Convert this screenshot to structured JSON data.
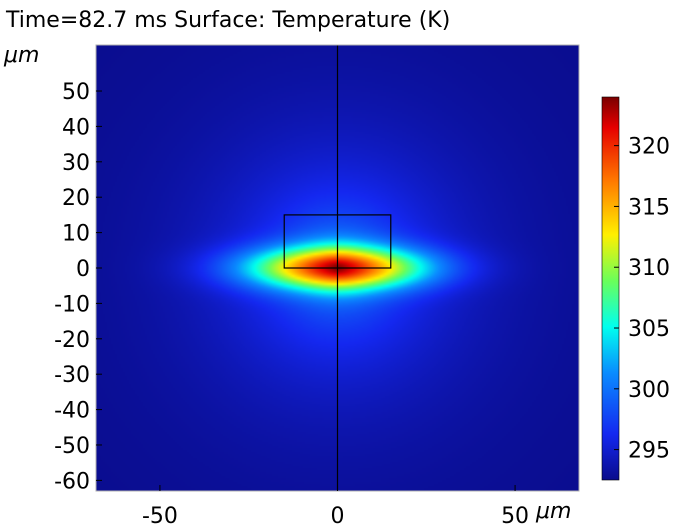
{
  "chart_data": {
    "type": "heatmap",
    "title": "Time=82.7 ms  Surface: Temperature (K)",
    "xunit": "μm",
    "yunit": "μm",
    "xlim": [
      -68,
      68
    ],
    "ylim": [
      -63,
      63
    ],
    "xticks": [
      -50,
      0,
      50
    ],
    "yticks": [
      50,
      40,
      30,
      20,
      10,
      0,
      -10,
      -20,
      -30,
      -40,
      -50,
      -60
    ],
    "field": {
      "quantity": "Temperature (K)",
      "max": 324,
      "min": 292.5,
      "hotspot_center": [
        0,
        0
      ],
      "hotspot_shape": "ellipse, wider in x than y",
      "hotspot_semi_axes": [
        15,
        3.5
      ]
    },
    "overlays": {
      "rectangle": {
        "x": [
          -15,
          15
        ],
        "y": [
          0,
          15
        ]
      },
      "vertical_line_x": 0
    },
    "colorbar": {
      "colormap": "rainbow",
      "range": [
        292.5,
        324
      ],
      "ticks": [
        320,
        315,
        310,
        305,
        300,
        295
      ]
    }
  }
}
